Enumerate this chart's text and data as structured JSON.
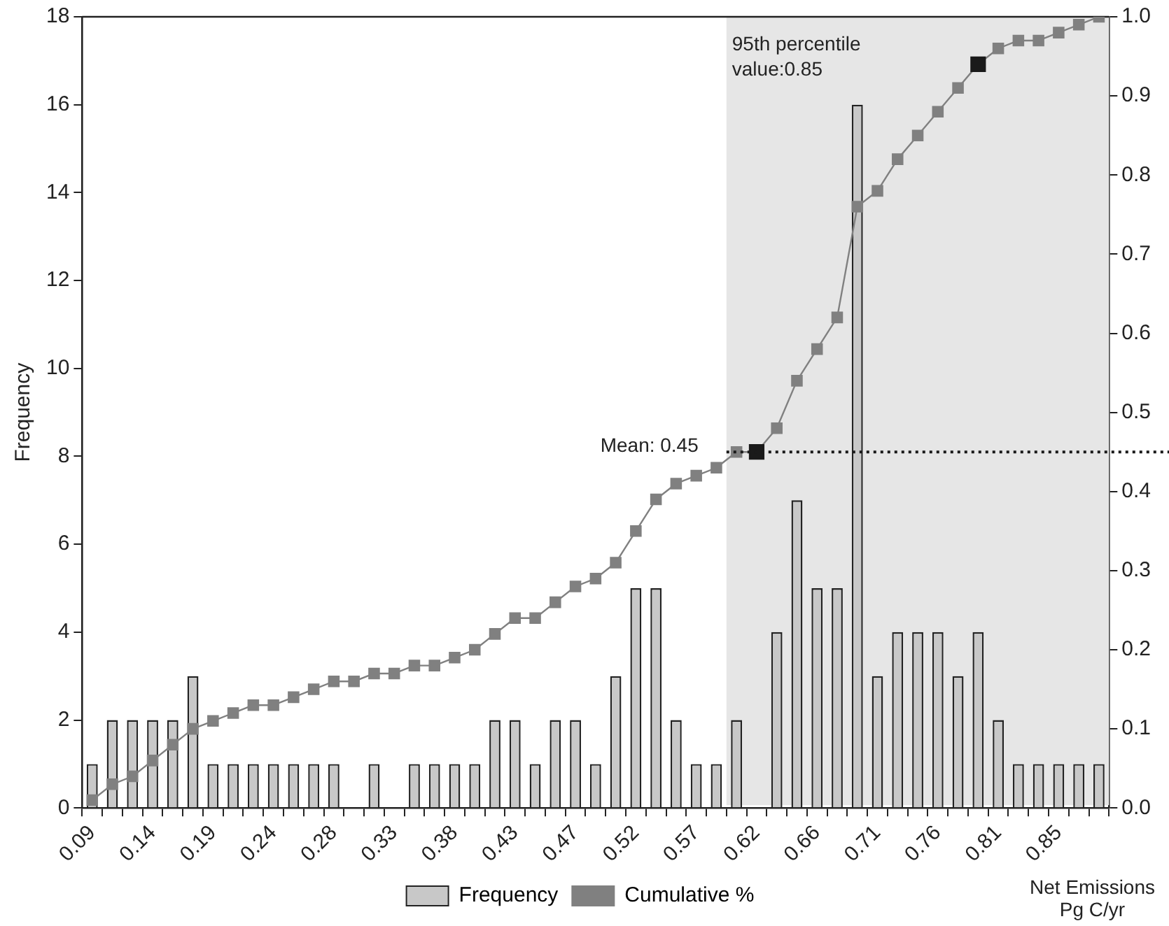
{
  "chart_data": {
    "type": "bar",
    "xlabel": "Net Emissions\nPg C/yr",
    "ylabel": "Frequency",
    "categories": [
      "0.09",
      null,
      null,
      "0.14",
      null,
      null,
      "0.19",
      null,
      null,
      "0.24",
      null,
      null,
      "0.28",
      null,
      null,
      "0.33",
      null,
      null,
      "0.38",
      null,
      null,
      "0.43",
      null,
      null,
      "0.47",
      null,
      null,
      "0.52",
      null,
      null,
      "0.57",
      null,
      null,
      "0.62",
      null,
      null,
      "0.66",
      null,
      null,
      "0.71",
      null,
      null,
      "0.76",
      null,
      null,
      "0.81",
      null,
      null,
      "0.85",
      null,
      null
    ],
    "series": [
      {
        "name": "Frequency",
        "color": "#c8c8c8",
        "values": [
          1,
          2,
          2,
          2,
          2,
          3,
          1,
          1,
          1,
          1,
          1,
          1,
          1,
          0,
          1,
          0,
          1,
          1,
          1,
          1,
          2,
          2,
          1,
          2,
          2,
          1,
          3,
          5,
          5,
          2,
          1,
          1,
          2,
          0,
          4,
          7,
          5,
          5,
          16,
          3,
          4,
          4,
          4,
          3,
          4,
          2,
          1,
          1,
          1,
          1,
          1
        ]
      },
      {
        "name": "Cumulative %",
        "type": "line",
        "axis": "y2",
        "color": "#808080",
        "colors": [
          "#808080",
          "#808080",
          "#808080",
          "#808080",
          "#808080",
          "#808080",
          "#808080",
          "#808080",
          "#808080",
          "#808080",
          "#808080",
          "#808080",
          "#808080",
          "#808080",
          "#808080",
          "#808080",
          "#808080",
          "#808080",
          "#808080",
          "#808080",
          "#808080",
          "#808080",
          "#808080",
          "#808080",
          "#808080",
          "#808080",
          "#808080",
          "#808080",
          "#808080",
          "#808080",
          "#808080",
          "#808080",
          "#808080",
          "#1a1a1a",
          "#808080",
          "#808080",
          "#808080",
          "#808080",
          "#808080",
          "#808080",
          "#808080",
          "#808080",
          "#808080",
          "#808080",
          "#1a1a1a",
          "#808080",
          "#808080",
          "#808080",
          "#808080",
          "#808080",
          "#808080"
        ],
        "values": [
          0.01,
          0.03,
          0.04,
          0.06,
          0.08,
          0.1,
          0.11,
          0.12,
          0.13,
          0.13,
          0.14,
          0.15,
          0.16,
          0.16,
          0.17,
          0.17,
          0.18,
          0.18,
          0.19,
          0.2,
          0.22,
          0.24,
          0.24,
          0.26,
          0.28,
          0.29,
          0.31,
          0.35,
          0.39,
          0.41,
          0.42,
          0.43,
          0.45,
          0.45,
          0.48,
          0.54,
          0.58,
          0.62,
          0.76,
          0.78,
          0.82,
          0.85,
          0.88,
          0.91,
          0.94,
          0.96,
          0.97,
          0.97,
          0.98,
          0.99,
          1.0
        ]
      }
    ],
    "ylim": [
      0,
      18
    ],
    "yticks": [
      0,
      2,
      4,
      6,
      8,
      10,
      12,
      14,
      16,
      18
    ],
    "y2lim": [
      0,
      1
    ],
    "y2ticks": [
      {
        "value": 0,
        "label": "0.0"
      },
      0.1,
      0.2,
      0.3,
      0.4,
      0.5,
      0.6,
      0.7,
      0.8,
      0.9,
      {
        "value": 1,
        "label": "1.0"
      }
    ],
    "ref_lines": [
      {
        "axis": "y2",
        "value": 0.45,
        "label": "Mean: 0.45",
        "color": "#1a1a1a",
        "line_style": "dotted"
      }
    ],
    "annotations": [
      "95th percentile\nvalue:0.85"
    ],
    "marker": "square",
    "line_style": "solid",
    "legend": "bottom",
    "grid": false
  }
}
